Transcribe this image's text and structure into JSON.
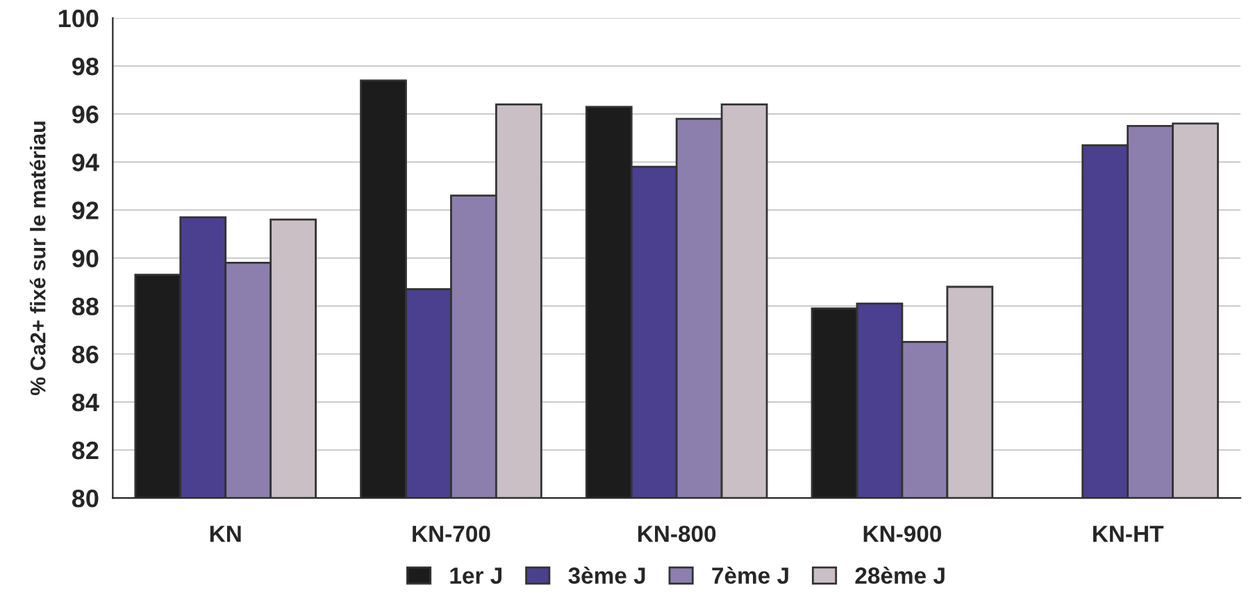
{
  "chart_data": {
    "type": "bar",
    "ylabel": "% Ca2+ fixé sur le matériau",
    "categories": [
      "KN",
      "KN-700",
      "KN-800",
      "KN-900",
      "KN-HT"
    ],
    "series": [
      {
        "name": "1er J",
        "color": "#1c1c1c",
        "values": [
          89.3,
          97.4,
          96.3,
          87.9,
          null
        ]
      },
      {
        "name": "3ème J",
        "color": "#4b3f8f",
        "values": [
          91.7,
          88.7,
          93.8,
          88.1,
          94.7
        ]
      },
      {
        "name": "7ème J",
        "color": "#8c7fae",
        "values": [
          89.8,
          92.6,
          95.8,
          86.5,
          95.5
        ]
      },
      {
        "name": "28ème J",
        "color": "#c9bfc4",
        "values": [
          91.6,
          96.4,
          96.4,
          88.8,
          95.6
        ]
      }
    ],
    "ylim": [
      80,
      100
    ],
    "yticks": [
      80,
      82,
      84,
      86,
      88,
      90,
      92,
      94,
      96,
      98,
      100
    ],
    "grid": "y",
    "legend": "bottom"
  }
}
